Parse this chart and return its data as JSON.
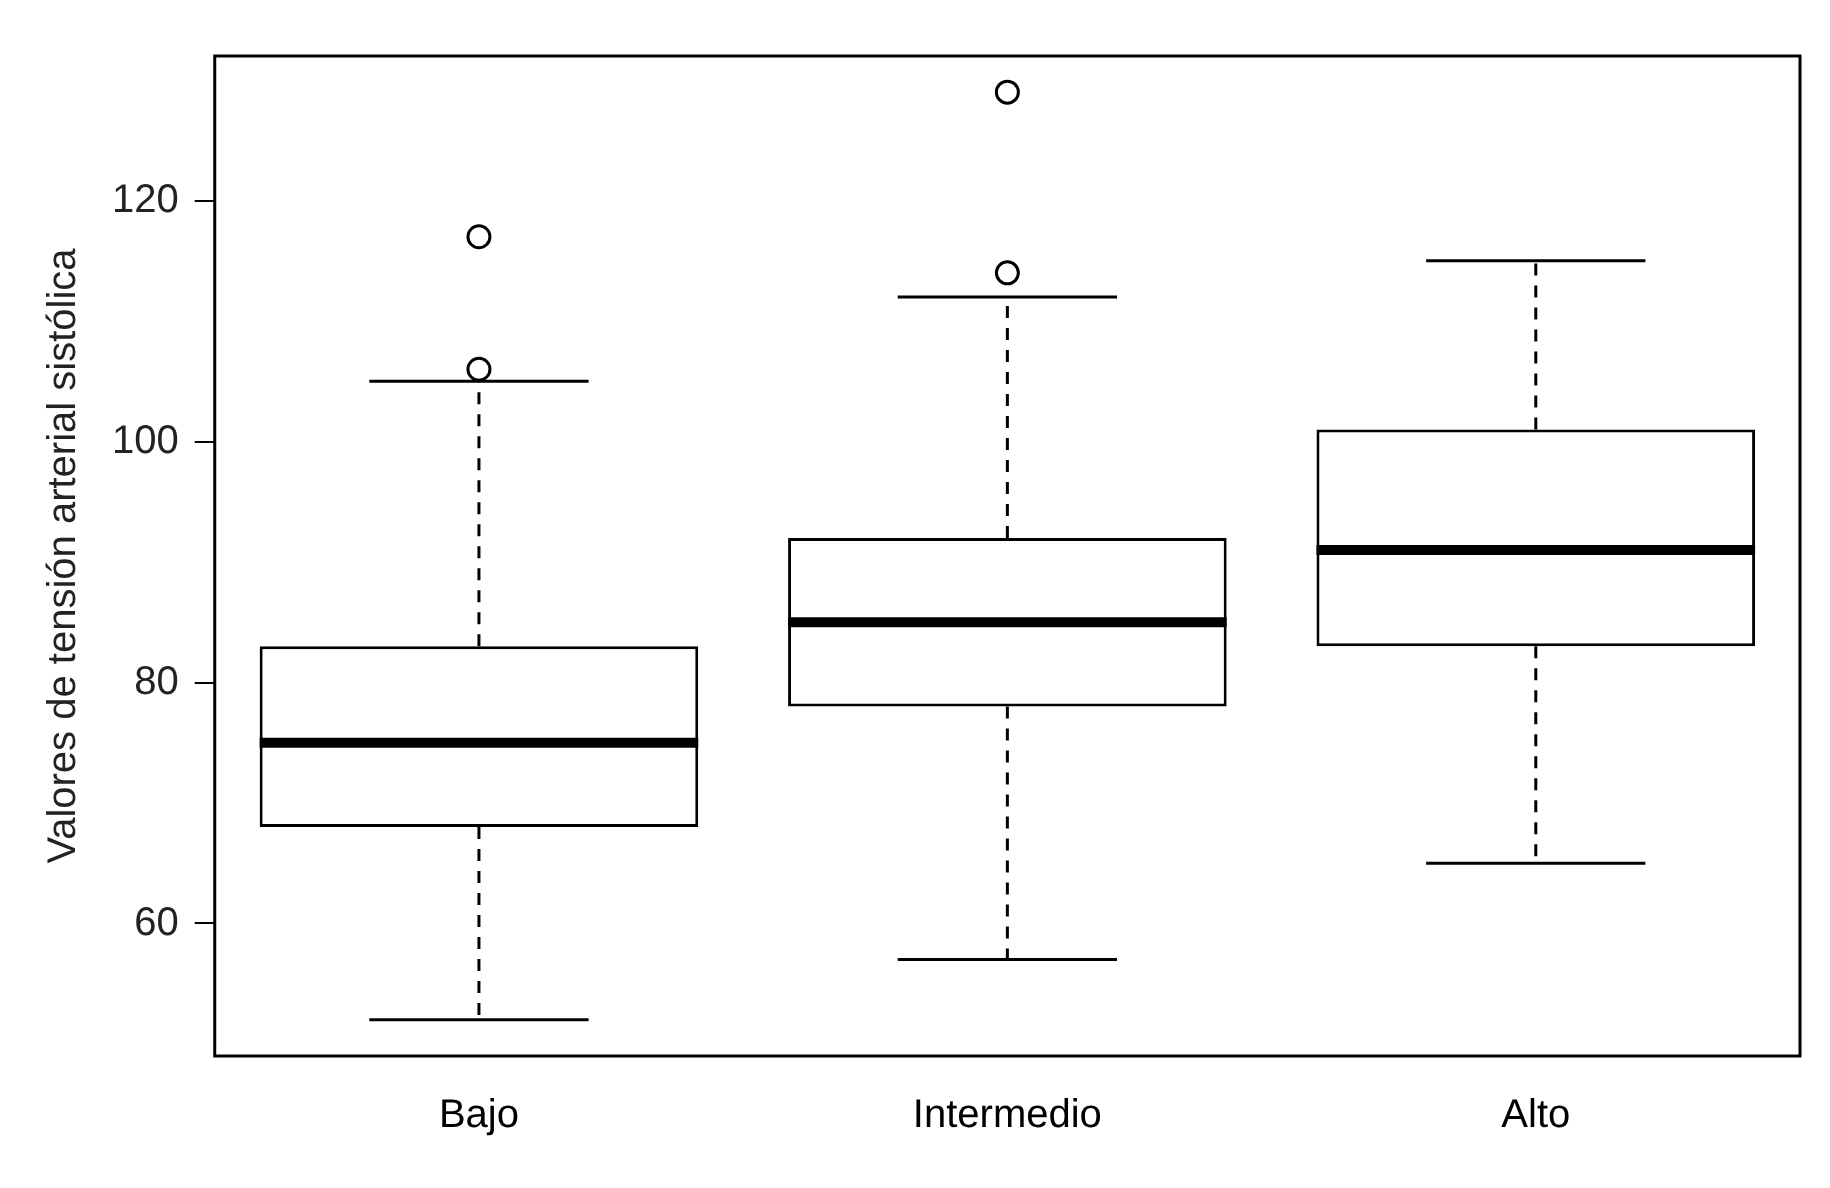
{
  "chart_data": {
    "type": "box",
    "ylabel": "Valores de tensión arterial sistólica",
    "categories": [
      "Bajo",
      "Intermedio",
      "Alto"
    ],
    "boxes": [
      {
        "low": 52,
        "q1": 68,
        "median": 75,
        "q3": 83,
        "high": 105,
        "outliers": [
          106,
          117
        ]
      },
      {
        "low": 57,
        "q1": 78,
        "median": 85,
        "q3": 92,
        "high": 112,
        "outliers": [
          114,
          129
        ]
      },
      {
        "low": 65,
        "q1": 83,
        "median": 91,
        "q3": 101,
        "high": 115
      }
    ],
    "ylim": [
      49,
      132
    ],
    "yticks": [
      60,
      80,
      100,
      120
    ],
    "grid": false,
    "legend": false
  }
}
